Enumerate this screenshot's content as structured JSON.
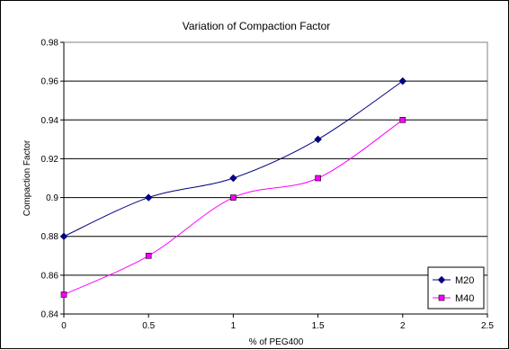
{
  "chart_data": {
    "type": "line",
    "title": "Variation of Compaction Factor",
    "xlabel": "% of PEG400",
    "ylabel": "Compaction Factor",
    "xlim": [
      0,
      2.5
    ],
    "ylim": [
      0.84,
      0.98
    ],
    "xticks": [
      "0",
      "0.5",
      "1",
      "1.5",
      "2",
      "2.5"
    ],
    "yticks": [
      "0.84",
      "0.86",
      "0.88",
      "0.9",
      "0.92",
      "0.94",
      "0.96",
      "0.98"
    ],
    "grid": "horizontal",
    "legend_position": "bottom-right",
    "x": [
      0,
      0.5,
      1,
      1.5,
      2
    ],
    "series": [
      {
        "name": "M20",
        "values": [
          0.88,
          0.9,
          0.91,
          0.93,
          0.96
        ],
        "color": "#000080",
        "marker": "diamond"
      },
      {
        "name": "M40",
        "values": [
          0.85,
          0.87,
          0.9,
          0.91,
          0.94
        ],
        "color": "#FF00FF",
        "marker": "square"
      }
    ]
  }
}
